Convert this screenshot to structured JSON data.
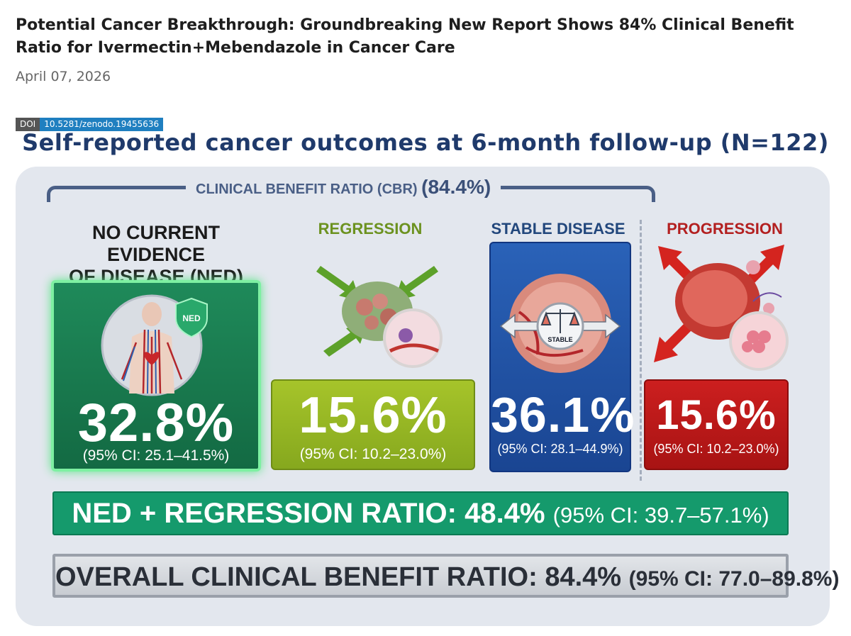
{
  "article": {
    "headline": "Potential Cancer Breakthrough: Groundbreaking New Report Shows 84% Clinical Benefit Ratio for Ivermectin+Mebendazole in Cancer Care",
    "date": "April 07, 2026",
    "doi_label": "DOI",
    "doi_value": "10.5281/zenodo.19455636"
  },
  "infographic": {
    "title": "Self-reported cancer outcomes at 6-month follow-up (N=122)",
    "cbr_label": "CLINICAL BENEFIT RATIO (CBR)",
    "cbr_value": "(84.4%)",
    "categories": [
      {
        "title_line1": "NO CURRENT EVIDENCE",
        "title_line2": "OF DISEASE (NED)",
        "value": "32.8%",
        "ci": "(95% CI: 25.1–41.5%)",
        "badge": "NED",
        "color": "#1f8a5a"
      },
      {
        "title": "REGRESSION",
        "value": "15.6%",
        "ci": "(95% CI: 10.2–23.0%)",
        "color": "#a6c42a"
      },
      {
        "title": "STABLE DISEASE",
        "value": "36.1%",
        "ci": "(95% CI: 28.1–44.9%)",
        "badge": "STABLE",
        "color": "#2a62b8"
      },
      {
        "title": "PROGRESSION",
        "value": "15.6%",
        "ci": "(95% CI: 10.2–23.0%)",
        "color": "#cc1f1f"
      }
    ],
    "ned_regression": {
      "label": "NED + REGRESSION RATIO: 48.4%",
      "ci": "(95% CI: 39.7–57.1%)"
    },
    "overall": {
      "label": "OVERALL CLINICAL BENEFIT RATIO: 84.4%",
      "ci": "(95% CI: 77.0–89.8%)"
    }
  }
}
